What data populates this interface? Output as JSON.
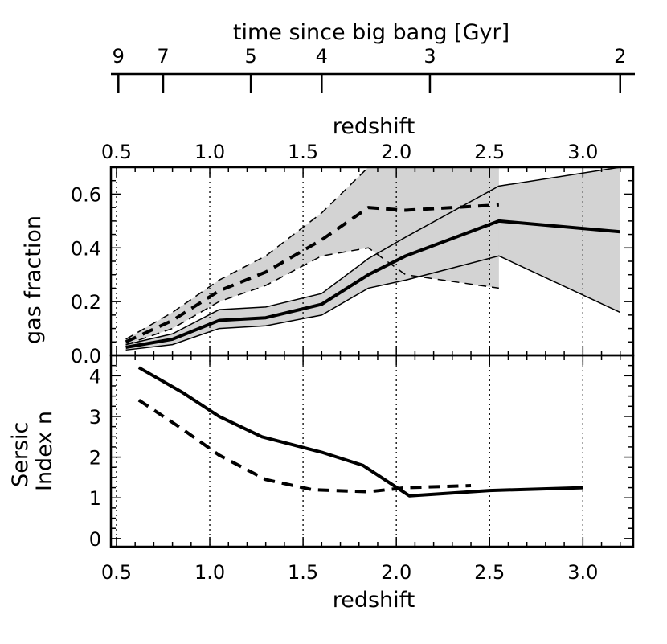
{
  "chart_data": {
    "type": "line",
    "top_axis": {
      "label": "time since big bang [Gyr]",
      "ticks": [
        {
          "label": "9",
          "z": 0.51
        },
        {
          "label": "7",
          "z": 0.75
        },
        {
          "label": "5",
          "z": 1.22
        },
        {
          "label": "4",
          "z": 1.6
        },
        {
          "label": "3",
          "z": 2.18
        },
        {
          "label": "2",
          "z": 3.2
        }
      ]
    },
    "redshift_ticks": [
      "0.5",
      "1.0",
      "1.5",
      "2.0",
      "2.5",
      "3.0"
    ],
    "xlabel_top": "redshift",
    "xlabel_bottom": "redshift",
    "xlim": [
      0.47,
      3.27
    ],
    "panels": [
      {
        "id": "gas-fraction",
        "ylabel": "gas fraction",
        "ylim": [
          0.0,
          0.7
        ],
        "yticks": [
          "0.0",
          "0.2",
          "0.4",
          "0.6"
        ],
        "series": [
          {
            "name": "solid",
            "style": "solid",
            "x": [
              0.55,
              0.8,
              1.05,
              1.3,
              1.6,
              1.85,
              2.05,
              2.55,
              3.2
            ],
            "y": [
              0.03,
              0.06,
              0.13,
              0.14,
              0.19,
              0.3,
              0.37,
              0.5,
              0.46
            ],
            "band_lower": [
              0.02,
              0.04,
              0.1,
              0.11,
              0.15,
              0.25,
              0.28,
              0.37,
              0.16
            ],
            "band_upper": [
              0.04,
              0.08,
              0.17,
              0.18,
              0.23,
              0.36,
              0.44,
              0.63,
              0.7
            ]
          },
          {
            "name": "dashed",
            "style": "dashed",
            "x": [
              0.55,
              0.8,
              1.05,
              1.3,
              1.6,
              1.85,
              2.05,
              2.55
            ],
            "y": [
              0.05,
              0.13,
              0.24,
              0.31,
              0.43,
              0.55,
              0.54,
              0.56
            ],
            "band_lower": [
              0.04,
              0.1,
              0.2,
              0.26,
              0.37,
              0.4,
              0.3,
              0.25
            ],
            "band_upper": [
              0.06,
              0.16,
              0.28,
              0.37,
              0.53,
              0.7,
              0.7,
              0.7
            ]
          }
        ]
      },
      {
        "id": "sersic-index",
        "ylabel": "Sersic Index n",
        "ylim": [
          -0.2,
          4.5
        ],
        "yticks": [
          "0",
          "1",
          "2",
          "3",
          "4"
        ],
        "series": [
          {
            "name": "solid",
            "style": "solid",
            "x": [
              0.62,
              0.85,
              1.05,
              1.28,
              1.6,
              1.82,
              2.07,
              2.5,
              3.0
            ],
            "y": [
              4.2,
              3.6,
              3.0,
              2.5,
              2.12,
              1.8,
              1.05,
              1.18,
              1.25
            ]
          },
          {
            "name": "dashed",
            "style": "dashed",
            "x": [
              0.62,
              0.85,
              1.05,
              1.3,
              1.55,
              1.85,
              2.05,
              2.4
            ],
            "y": [
              3.4,
              2.7,
              2.05,
              1.45,
              1.2,
              1.15,
              1.25,
              1.3
            ]
          }
        ]
      }
    ]
  }
}
